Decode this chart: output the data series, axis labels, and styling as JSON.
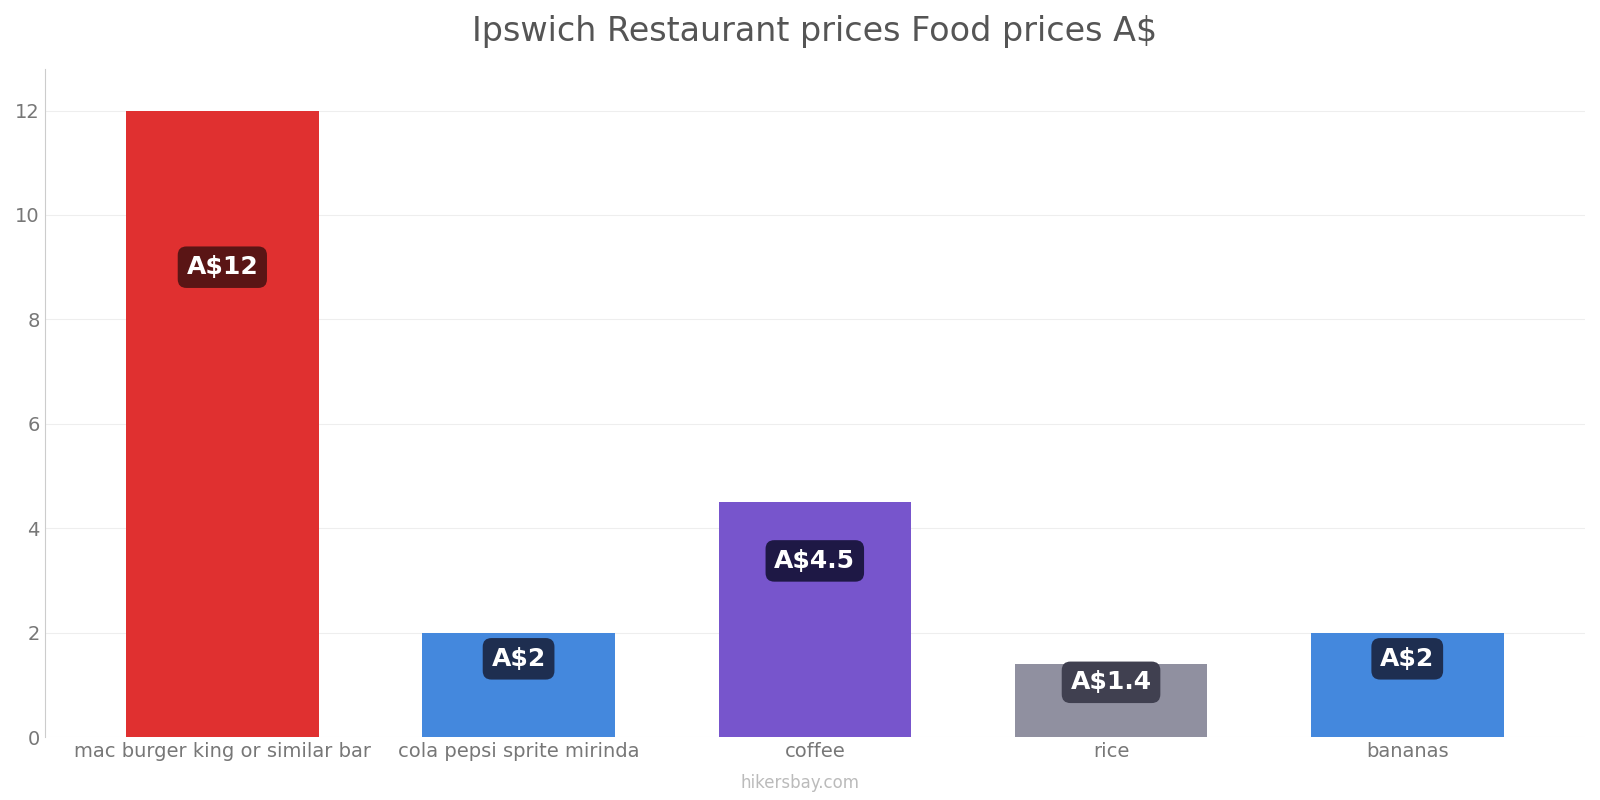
{
  "title": "Ipswich Restaurant prices Food prices A$",
  "categories": [
    "mac burger king or similar bar",
    "cola pepsi sprite mirinda",
    "coffee",
    "rice",
    "bananas"
  ],
  "values": [
    12,
    2,
    4.5,
    1.4,
    2
  ],
  "bar_colors": [
    "#e03030",
    "#4488dd",
    "#7755cc",
    "#9090a0",
    "#4488dd"
  ],
  "label_texts": [
    "A$12",
    "A$2",
    "A$4.5",
    "A$1.4",
    "A$2"
  ],
  "label_bg_colors": [
    "#5a1515",
    "#1e2e50",
    "#1e1845",
    "#404050",
    "#1e2e50"
  ],
  "ylim": [
    0,
    12.8
  ],
  "yticks": [
    0,
    2,
    4,
    6,
    8,
    10,
    12
  ],
  "watermark": "hikersbay.com",
  "title_fontsize": 24,
  "tick_fontsize": 14,
  "label_fontsize": 18,
  "background_color": "#ffffff",
  "grid_color": "#eeeeee"
}
